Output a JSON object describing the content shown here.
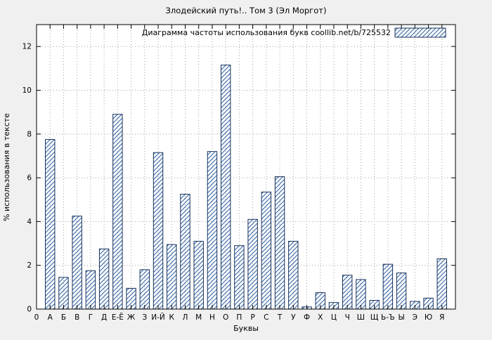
{
  "chart_data": {
    "type": "bar",
    "title": "Злодейский путь!.. Том 3 (Эл Моргот)",
    "legend": "Диаграмма частоты использования букв coollib.net/b/725532",
    "legend_position": "top-right",
    "xlabel": "Буквы",
    "ylabel": "% использования в тексте",
    "x_origin_label": "0",
    "categories": [
      "А",
      "Б",
      "В",
      "Г",
      "Д",
      "Е-Ё",
      "Ж",
      "З",
      "И-Й",
      "К",
      "Л",
      "М",
      "Н",
      "О",
      "П",
      "Р",
      "С",
      "Т",
      "У",
      "Ф",
      "Х",
      "Ц",
      "Ч",
      "Ш",
      "Щ",
      "Ь-Ъ",
      "Ы",
      "Э",
      "Ю",
      "Я"
    ],
    "values": [
      7.75,
      1.45,
      4.25,
      1.75,
      2.75,
      8.9,
      0.95,
      1.8,
      7.15,
      2.95,
      5.25,
      3.1,
      7.2,
      11.15,
      2.9,
      4.1,
      5.35,
      6.05,
      3.1,
      0.1,
      0.75,
      0.3,
      1.55,
      1.35,
      0.4,
      2.05,
      1.65,
      0.35,
      0.5,
      2.3
    ],
    "yticks": [
      0,
      2,
      4,
      6,
      8,
      10,
      12
    ],
    "ylim": [
      0,
      13
    ],
    "grid": true,
    "colors": {
      "figure_background": "#f0f0f0",
      "plot_background": "#ffffff",
      "bar_outline": "#16325c",
      "bar_hatch": "#2e5fa3",
      "grid": "#9f9f9f"
    }
  }
}
